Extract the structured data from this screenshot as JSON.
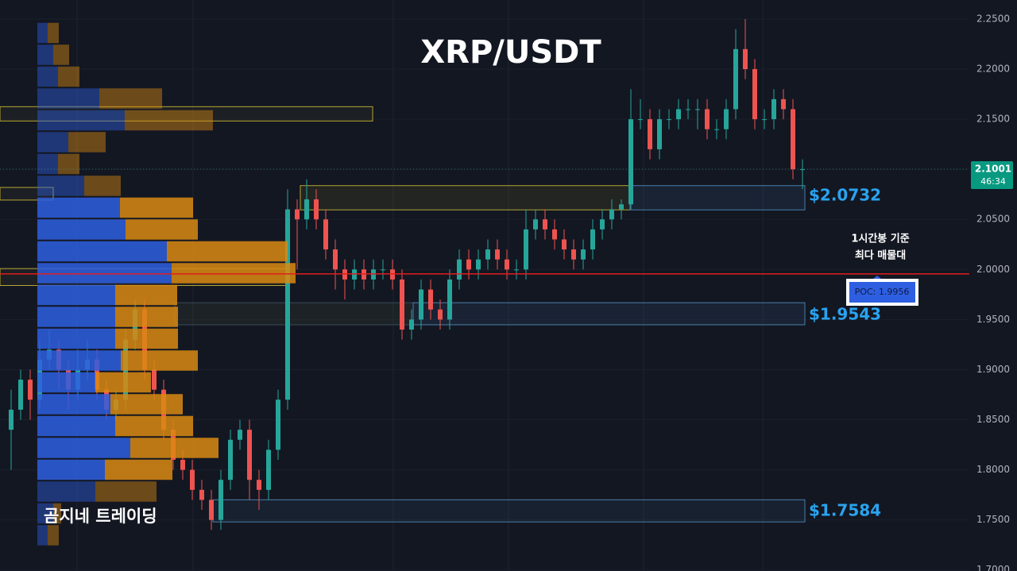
{
  "chart_data": {
    "type": "candlestick",
    "title": "XRP/USDT",
    "watermark": "곰지네 트레이딩",
    "ylim": [
      1.699,
      2.269
    ],
    "yticks": [
      {
        "value": 2.25,
        "label": "2.2500"
      },
      {
        "value": 2.2,
        "label": "2.2000"
      },
      {
        "value": 2.15,
        "label": "2.1500"
      },
      {
        "value": 2.1,
        "label": "2.1000"
      },
      {
        "value": 2.05,
        "label": "2.0500"
      },
      {
        "value": 2.0,
        "label": "2.0000"
      },
      {
        "value": 1.95,
        "label": "1.9500"
      },
      {
        "value": 1.9,
        "label": "1.9000"
      },
      {
        "value": 1.85,
        "label": "1.8500"
      },
      {
        "value": 1.8,
        "label": "1.8000"
      },
      {
        "value": 1.75,
        "label": "1.7500"
      },
      {
        "value": 1.7,
        "label": "1.7000"
      }
    ],
    "up_color": "#26a69a",
    "down_color": "#ef5350",
    "open": [
      1.84,
      1.86,
      1.89,
      1.87,
      1.91,
      1.92,
      1.9,
      1.88,
      1.9,
      1.91,
      1.88,
      1.86,
      1.87,
      1.93,
      1.96,
      1.9,
      1.88,
      1.84,
      1.81,
      1.8,
      1.78,
      1.77,
      1.75,
      1.79,
      1.83,
      1.84,
      1.79,
      1.78,
      1.82,
      1.87,
      2.06,
      2.05,
      2.07,
      2.05,
      2.02,
      2.0,
      1.99,
      2.0,
      1.99,
      2.0,
      2.0,
      1.99,
      1.94,
      1.95,
      1.98,
      1.96,
      1.95,
      1.99,
      2.01,
      2.0,
      2.01,
      2.02,
      2.01,
      2.0,
      2.0,
      2.04,
      2.05,
      2.04,
      2.03,
      2.02,
      2.01,
      2.02,
      2.04,
      2.05,
      2.06,
      2.065,
      2.15,
      2.15,
      2.12,
      2.15,
      2.15,
      2.16,
      2.16,
      2.16,
      2.14,
      2.14,
      2.16,
      2.22,
      2.2,
      2.15,
      2.15,
      2.17,
      2.16,
      2.1
    ],
    "high": [
      1.88,
      1.9,
      1.9,
      1.93,
      1.94,
      1.93,
      1.91,
      1.92,
      1.93,
      1.92,
      1.89,
      1.88,
      1.94,
      1.97,
      1.97,
      1.91,
      1.89,
      1.85,
      1.82,
      1.81,
      1.79,
      1.78,
      1.8,
      1.84,
      1.85,
      1.85,
      1.8,
      1.83,
      1.88,
      2.08,
      2.07,
      2.09,
      2.08,
      2.06,
      2.03,
      2.01,
      2.01,
      2.01,
      2.01,
      2.01,
      2.01,
      2.0,
      1.96,
      1.99,
      1.99,
      1.97,
      2.0,
      2.02,
      2.02,
      2.02,
      2.03,
      2.03,
      2.02,
      2.01,
      2.06,
      2.06,
      2.06,
      2.05,
      2.04,
      2.03,
      2.03,
      2.05,
      2.06,
      2.07,
      2.07,
      2.18,
      2.17,
      2.16,
      2.16,
      2.16,
      2.17,
      2.17,
      2.17,
      2.17,
      2.15,
      2.17,
      2.24,
      2.25,
      2.21,
      2.16,
      2.18,
      2.18,
      2.17,
      2.11
    ],
    "low": [
      1.8,
      1.85,
      1.85,
      1.86,
      1.9,
      1.88,
      1.86,
      1.87,
      1.89,
      1.87,
      1.85,
      1.85,
      1.86,
      1.92,
      1.89,
      1.87,
      1.83,
      1.8,
      1.79,
      1.77,
      1.76,
      1.74,
      1.74,
      1.78,
      1.82,
      1.77,
      1.76,
      1.77,
      1.81,
      1.86,
      2.0,
      2.04,
      2.04,
      2.01,
      1.98,
      1.97,
      1.98,
      1.98,
      1.98,
      1.99,
      1.98,
      1.93,
      1.93,
      1.94,
      1.95,
      1.94,
      1.94,
      1.98,
      1.99,
      1.99,
      2.0,
      2.0,
      1.99,
      1.99,
      1.99,
      2.03,
      2.03,
      2.02,
      2.01,
      2.0,
      2.0,
      2.01,
      2.03,
      2.04,
      2.05,
      2.06,
      2.14,
      2.11,
      2.11,
      2.14,
      2.14,
      2.15,
      2.14,
      2.13,
      2.13,
      2.13,
      2.15,
      2.19,
      2.14,
      2.14,
      2.14,
      2.15,
      2.09,
      2.08
    ],
    "close": [
      1.86,
      1.89,
      1.87,
      1.91,
      1.92,
      1.9,
      1.88,
      1.9,
      1.91,
      1.88,
      1.86,
      1.87,
      1.93,
      1.96,
      1.9,
      1.88,
      1.84,
      1.81,
      1.8,
      1.78,
      1.77,
      1.75,
      1.79,
      1.83,
      1.84,
      1.79,
      1.78,
      1.82,
      1.87,
      2.06,
      2.05,
      2.07,
      2.05,
      2.02,
      2.0,
      1.99,
      2.0,
      1.99,
      2.0,
      2.0,
      1.99,
      1.94,
      1.95,
      1.98,
      1.96,
      1.95,
      1.99,
      2.01,
      2.0,
      2.01,
      2.02,
      2.01,
      2.0,
      2.0,
      2.04,
      2.05,
      2.04,
      2.03,
      2.02,
      2.01,
      2.02,
      2.04,
      2.05,
      2.06,
      2.065,
      2.15,
      2.15,
      2.12,
      2.15,
      2.15,
      2.16,
      2.16,
      2.16,
      2.14,
      2.14,
      2.16,
      2.22,
      2.2,
      2.15,
      2.15,
      2.17,
      2.16,
      2.1,
      2.1001
    ],
    "last_price": 2.1001,
    "countdown": "46:34",
    "profile": {
      "buy_color": "#2e5fe0",
      "sell_color": "#d98a12",
      "edges": [
        2.247,
        2.2252,
        2.2034,
        2.1816,
        2.1598,
        2.138,
        2.1162,
        2.0944,
        2.0726,
        2.0508,
        2.029,
        2.0072,
        1.9854,
        1.9636,
        1.9418,
        1.92,
        1.8982,
        1.8764,
        1.8546,
        1.8328,
        1.811,
        1.7892,
        1.7674,
        1.7456,
        1.7238
      ],
      "buy": [
        13,
        20,
        26,
        78,
        110,
        39,
        26,
        59,
        104,
        111,
        163,
        169,
        98,
        98,
        98,
        105,
        73,
        92,
        98,
        117,
        85,
        73,
        20,
        13
      ],
      "sell": [
        14,
        20,
        27,
        79,
        111,
        47,
        27,
        46,
        92,
        91,
        152,
        156,
        78,
        79,
        79,
        97,
        70,
        91,
        98,
        111,
        85,
        77,
        10,
        14
      ]
    },
    "zones": [
      {
        "top": 2.1625,
        "bottom": 2.1482
      },
      {
        "top": 2.0837,
        "bottom": 2.0595
      },
      {
        "top": 2.0837,
        "bottom": 2.0595,
        "label": "$2.0732",
        "value": 2.0732
      },
      {
        "top": 2.0009,
        "bottom": 1.984
      },
      {
        "top": 1.9668,
        "bottom": 1.9448
      },
      {
        "top": 1.9668,
        "bottom": 1.9448,
        "label": "$1.9543",
        "value": 1.9543
      },
      {
        "top": 1.7701,
        "bottom": 1.748,
        "label": "$1.7584",
        "value": 1.7584
      },
      {
        "top": 2.0819,
        "bottom": 2.0693
      }
    ],
    "poc": {
      "value": 1.9956,
      "label": "POC: 1.9956",
      "color": "#e01e1e"
    },
    "annotation": [
      "1시간봉 기준",
      "최다 매물대"
    ]
  }
}
